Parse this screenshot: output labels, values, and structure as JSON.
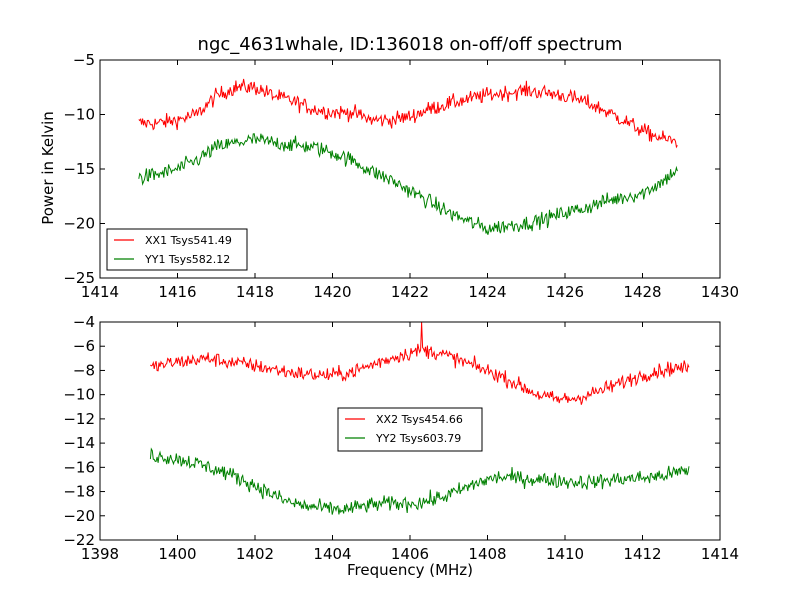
{
  "figure": {
    "title": "ngc_4631whale, ID:136018 on-off/off spectrum",
    "ylabel": "Power in Kelvin",
    "xlabel": "Frequency (MHz)"
  },
  "chart_data": [
    {
      "type": "line",
      "title": "ngc_4631whale, ID:136018 on-off/off spectrum",
      "xlabel": "",
      "ylabel": "Power in Kelvin",
      "xlim": [
        1414,
        1430
      ],
      "ylim": [
        -25,
        -5
      ],
      "xticks": [
        "1414",
        "1416",
        "1418",
        "1420",
        "1422",
        "1424",
        "1426",
        "1428",
        "1430"
      ],
      "yticks": [
        "−25",
        "−20",
        "−15",
        "−10",
        "−5"
      ],
      "grid": false,
      "legend_position": "lower-left",
      "series": [
        {
          "name": "XX1 Tsys541.49",
          "color": "#ff0000",
          "noise": 1.0,
          "x": [
            1415.0,
            1415.5,
            1416.0,
            1416.5,
            1417.0,
            1417.5,
            1418.0,
            1418.5,
            1419.0,
            1419.5,
            1420.0,
            1420.5,
            1421.0,
            1421.5,
            1422.0,
            1422.5,
            1423.0,
            1423.5,
            1424.0,
            1424.5,
            1425.0,
            1425.5,
            1426.0,
            1426.5,
            1427.0,
            1427.5,
            1428.0,
            1428.5,
            1428.9
          ],
          "y": [
            -10.8,
            -10.8,
            -10.5,
            -10.0,
            -8.3,
            -7.5,
            -7.5,
            -8.3,
            -8.8,
            -9.5,
            -9.8,
            -9.8,
            -10.5,
            -10.5,
            -10.2,
            -9.5,
            -9.0,
            -8.6,
            -8.2,
            -8.0,
            -7.8,
            -8.0,
            -8.3,
            -8.8,
            -9.6,
            -10.5,
            -11.5,
            -12.2,
            -12.5
          ]
        },
        {
          "name": "YY1 Tsys582.12",
          "color": "#008000",
          "noise": 1.0,
          "x": [
            1415.0,
            1415.5,
            1416.0,
            1416.5,
            1417.0,
            1417.5,
            1418.0,
            1418.5,
            1419.0,
            1419.5,
            1420.0,
            1420.5,
            1421.0,
            1421.5,
            1422.0,
            1422.5,
            1423.0,
            1423.5,
            1424.0,
            1424.5,
            1425.0,
            1425.5,
            1426.0,
            1426.5,
            1427.0,
            1427.5,
            1428.0,
            1428.5,
            1428.9
          ],
          "y": [
            -15.8,
            -15.5,
            -15.0,
            -14.2,
            -13.0,
            -12.6,
            -12.3,
            -12.6,
            -12.8,
            -13.0,
            -13.5,
            -14.2,
            -15.2,
            -16.0,
            -17.0,
            -18.0,
            -19.0,
            -19.8,
            -20.5,
            -20.2,
            -20.0,
            -19.6,
            -19.0,
            -18.6,
            -18.0,
            -17.6,
            -17.2,
            -16.2,
            -15.0
          ]
        }
      ]
    },
    {
      "type": "line",
      "title": "",
      "xlabel": "Frequency (MHz)",
      "ylabel": "",
      "xlim": [
        1398,
        1414
      ],
      "ylim": [
        -22,
        -4
      ],
      "xticks": [
        "1398",
        "1400",
        "1402",
        "1404",
        "1406",
        "1408",
        "1410",
        "1412",
        "1414"
      ],
      "yticks": [
        "−22",
        "−20",
        "−18",
        "−16",
        "−14",
        "−12",
        "−10",
        "−8",
        "−6",
        "−4"
      ],
      "grid": false,
      "legend_position": "center",
      "series": [
        {
          "name": "XX2 Tsys454.66",
          "color": "#ff0000",
          "noise": 0.85,
          "spikes": [
            [
              1406.3,
              -4.0
            ]
          ],
          "x": [
            1399.3,
            1399.8,
            1400.3,
            1400.8,
            1401.3,
            1401.8,
            1402.3,
            1402.8,
            1403.3,
            1403.8,
            1404.3,
            1404.8,
            1405.3,
            1405.8,
            1406.3,
            1406.8,
            1407.3,
            1407.8,
            1408.3,
            1408.8,
            1409.3,
            1409.8,
            1410.3,
            1410.8,
            1411.3,
            1411.8,
            1412.3,
            1412.8,
            1413.2
          ],
          "y": [
            -7.8,
            -7.4,
            -7.2,
            -7.0,
            -7.3,
            -7.5,
            -7.8,
            -8.1,
            -8.3,
            -8.4,
            -8.3,
            -7.8,
            -7.2,
            -6.7,
            -6.3,
            -6.6,
            -7.2,
            -7.8,
            -8.4,
            -9.2,
            -10.0,
            -10.4,
            -10.3,
            -9.8,
            -9.2,
            -8.6,
            -8.1,
            -7.8,
            -7.8
          ]
        },
        {
          "name": "YY2 Tsys603.79",
          "color": "#008000",
          "noise": 0.9,
          "x": [
            1399.3,
            1399.8,
            1400.3,
            1400.8,
            1401.3,
            1401.8,
            1402.3,
            1402.8,
            1403.3,
            1403.8,
            1404.3,
            1404.8,
            1405.3,
            1405.8,
            1406.3,
            1406.8,
            1407.3,
            1407.8,
            1408.3,
            1408.8,
            1409.3,
            1409.8,
            1410.3,
            1410.8,
            1411.3,
            1411.8,
            1412.3,
            1412.8,
            1413.2
          ],
          "y": [
            -15.0,
            -15.2,
            -15.5,
            -16.0,
            -16.5,
            -17.2,
            -18.0,
            -18.8,
            -19.2,
            -19.4,
            -19.5,
            -19.2,
            -19.0,
            -19.0,
            -18.9,
            -18.5,
            -17.9,
            -17.2,
            -16.8,
            -16.9,
            -17.0,
            -17.1,
            -17.2,
            -17.2,
            -17.0,
            -16.9,
            -16.8,
            -16.5,
            -16.2
          ]
        }
      ]
    }
  ]
}
